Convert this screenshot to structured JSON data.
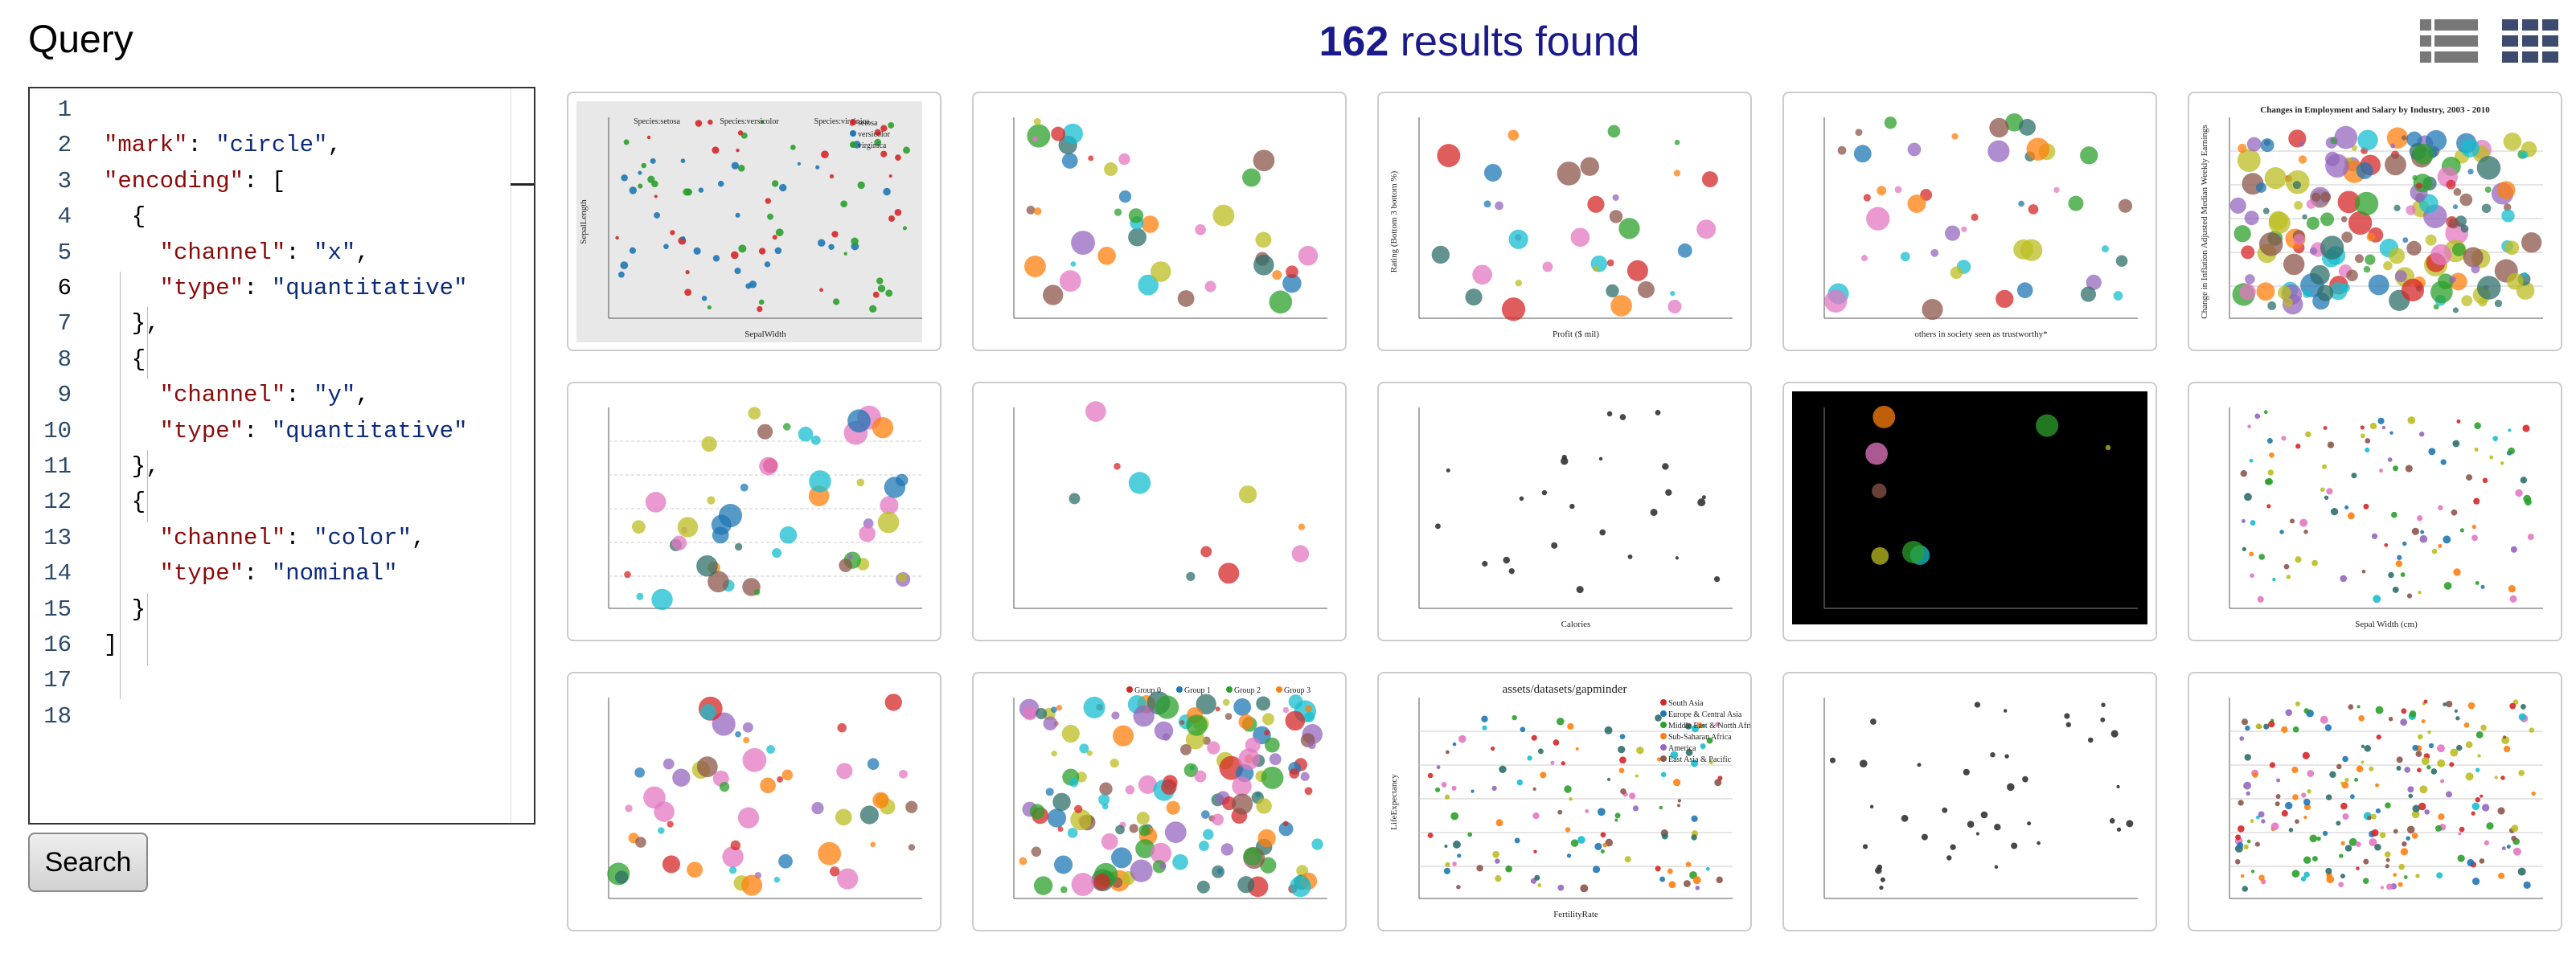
{
  "query": {
    "title": "Query",
    "button": "Search",
    "line_numbers": [
      1,
      2,
      3,
      4,
      5,
      6,
      7,
      8,
      9,
      10,
      11,
      12,
      13,
      14,
      15,
      16,
      17,
      18
    ],
    "lines": [
      [],
      [
        {
          "text": "\"mark\"",
          "kind": "key"
        },
        {
          "text": ": ",
          "kind": "punct"
        },
        {
          "text": "\"circle\"",
          "kind": "string"
        },
        {
          "text": ",",
          "kind": "punct"
        }
      ],
      [
        {
          "text": "\"encoding\"",
          "kind": "key"
        },
        {
          "text": ": [",
          "kind": "punct"
        }
      ],
      [
        {
          "text": "  {",
          "kind": "punct"
        }
      ],
      [
        {
          "text": "    \"channel\"",
          "kind": "key"
        },
        {
          "text": ": ",
          "kind": "punct"
        },
        {
          "text": "\"x\"",
          "kind": "string"
        },
        {
          "text": ",",
          "kind": "punct"
        }
      ],
      [
        {
          "text": "    \"type\"",
          "kind": "key"
        },
        {
          "text": ": ",
          "kind": "punct"
        },
        {
          "text": "\"quantitative\"",
          "kind": "string"
        }
      ],
      [
        {
          "text": "  },",
          "kind": "punct"
        }
      ],
      [
        {
          "text": "  {",
          "kind": "punct"
        }
      ],
      [
        {
          "text": "    \"channel\"",
          "kind": "key"
        },
        {
          "text": ": ",
          "kind": "punct"
        },
        {
          "text": "\"y\"",
          "kind": "string"
        },
        {
          "text": ",",
          "kind": "punct"
        }
      ],
      [
        {
          "text": "    \"type\"",
          "kind": "key"
        },
        {
          "text": ": ",
          "kind": "punct"
        },
        {
          "text": "\"quantitative\"",
          "kind": "string"
        }
      ],
      [
        {
          "text": "  },",
          "kind": "punct"
        }
      ],
      [
        {
          "text": "  {",
          "kind": "punct"
        }
      ],
      [
        {
          "text": "    \"channel\"",
          "kind": "key"
        },
        {
          "text": ": ",
          "kind": "punct"
        },
        {
          "text": "\"color\"",
          "kind": "string"
        },
        {
          "text": ",",
          "kind": "punct"
        }
      ],
      [
        {
          "text": "    \"type\"",
          "kind": "key"
        },
        {
          "text": ": ",
          "kind": "punct"
        },
        {
          "text": "\"nominal\"",
          "kind": "string"
        }
      ],
      [
        {
          "text": "  }",
          "kind": "punct"
        }
      ],
      [
        {
          "text": "]",
          "kind": "punct"
        }
      ],
      [],
      []
    ]
  },
  "results": {
    "count": "162",
    "label": "results found"
  },
  "thumbnails": [
    {
      "facets": [
        "Species:setosa",
        "Species:versicolor",
        "Species:virginica"
      ],
      "legend": [
        "setosa",
        "versicolor",
        "virginica"
      ],
      "x_label": "SepalWidth",
      "y_label": "SepalLength"
    },
    {
      "x_label": "",
      "y_label": ""
    },
    {
      "x_label": "Profit ($ mil)",
      "y_label": "Rating (Bottom 3 bottom %)"
    },
    {
      "x_label": "others in society seen as trustworthy*",
      "y_label": ""
    },
    {
      "title": "Changes in Employment and Salary by Industry, 2003 - 2010",
      "y_label": "Change in Inflation Adjusted Median Weekly Earnings"
    },
    {},
    {},
    {
      "x_label": "Calories"
    },
    {},
    {
      "x_label": "Sepal Width (cm)"
    },
    {},
    {
      "legend": [
        "Group 0",
        "Group 1",
        "Group 2",
        "Group 3"
      ]
    },
    {
      "title": "assets/datasets/gapminder",
      "legend": [
        "South Asia",
        "Europe & Central Asia",
        "Middle East & North Africa",
        "Sub-Saharan Africa",
        "America",
        "East Asia & Pacific"
      ],
      "x_label": "FertilityRate",
      "y_label": "LifeExpectancy"
    },
    {},
    {}
  ]
}
